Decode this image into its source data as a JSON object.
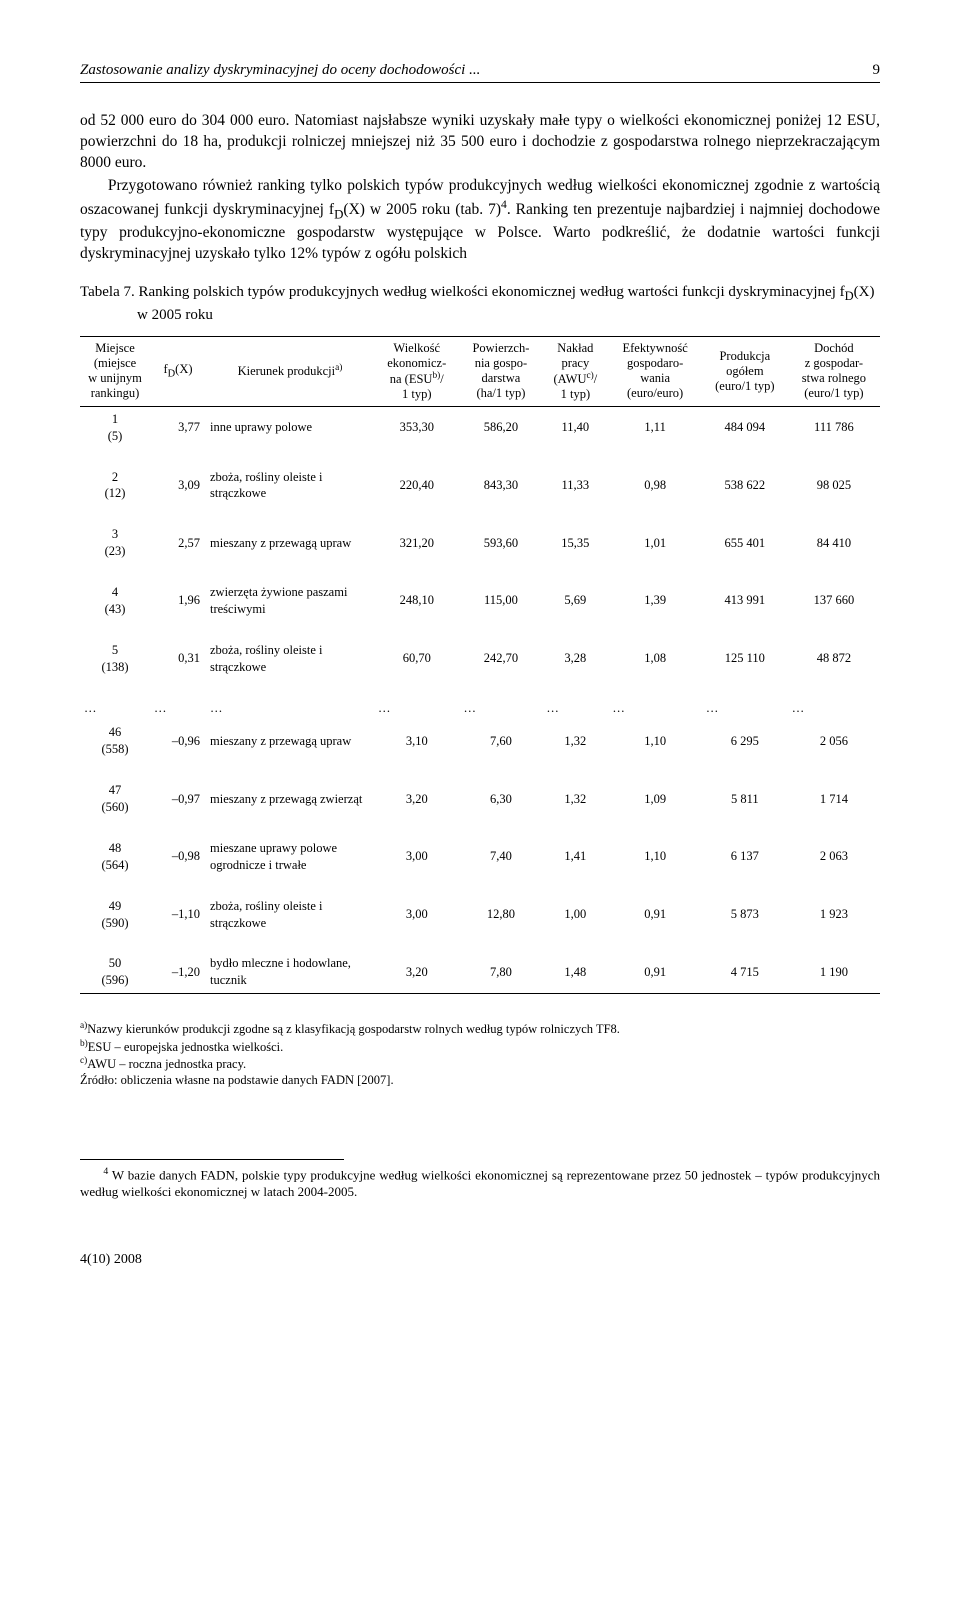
{
  "header": {
    "running_title": "Zastosowanie analizy dyskryminacyjnej do oceny dochodowości ...",
    "page_number": "9"
  },
  "paragraphs": {
    "p1": "od 52 000 euro do 304 000 euro. Natomiast najsłabsze wyniki uzyskały małe typy o wielkości ekonomicznej poniżej 12 ESU, powierzchni do 18 ha, produkcji rolniczej mniejszej niż 35 500 euro i dochodzie z gospodarstwa rolnego nieprzekraczającym 8000 euro.",
    "p2a": "Przygotowano również ranking tylko polskich typów produkcyjnych według wielkości ekonomicznej zgodnie z wartością oszacowanej funkcji dyskryminacyjnej f",
    "p2b": "(X) w 2005 roku (tab. 7)",
    "p2c": ". Ranking ten prezentuje najbardziej i najmniej dochodowe typy produkcyjno-ekonomiczne gospodarstw występujące w Polsce. Warto podkreślić, że dodatnie wartości funkcji dyskryminacyjnej uzyskało tylko 12% typów z ogółu polskich"
  },
  "table_caption": {
    "label": "Tabela 7.",
    "text_a": " Ranking polskich typów produkcyjnych według wielkości ekonomicznej według wartości funkcji dyskryminacyjnej f",
    "text_b": "(X) w 2005 roku"
  },
  "columns": {
    "c1a": "Miejsce",
    "c1b": "(miejsce",
    "c1c": "w unijnym",
    "c1d": "rankingu)",
    "c2": "f",
    "c2b": "(X)",
    "c3": "Kierunek produkcji",
    "c4a": "Wielkość",
    "c4b": "ekonomicz-",
    "c4c": "na (ESU",
    "c4d": "/",
    "c4e": "1 typ)",
    "c5a": "Powierzch-",
    "c5b": "nia gospo-",
    "c5c": "darstwa",
    "c5d": "(ha/1 typ)",
    "c6a": "Nakład",
    "c6b": "pracy",
    "c6c": "(AWU",
    "c6d": "/",
    "c6e": "1 typ)",
    "c7a": "Efektywność",
    "c7b": "gospodaro-",
    "c7c": "wania",
    "c7d": "(euro/euro)",
    "c8a": "Produkcja",
    "c8b": "ogółem",
    "c8c": "(euro/1 typ)",
    "c9a": "Dochód",
    "c9b": "z gospodar-",
    "c9c": "stwa rolnego",
    "c9d": "(euro/1 typ)"
  },
  "rows": [
    {
      "place": "1",
      "uplace": "(5)",
      "fdx": "3,77",
      "kind": "inne uprawy polowe",
      "esu": "353,30",
      "ha": "586,20",
      "awu": "11,40",
      "eff": "1,11",
      "prod": "484 094",
      "inc": "111 786"
    },
    {
      "place": "2",
      "uplace": "(12)",
      "fdx": "3,09",
      "kind": "zboża, rośliny oleiste i strączkowe",
      "esu": "220,40",
      "ha": "843,30",
      "awu": "11,33",
      "eff": "0,98",
      "prod": "538 622",
      "inc": "98 025"
    },
    {
      "place": "3",
      "uplace": "(23)",
      "fdx": "2,57",
      "kind": "mieszany z przewagą upraw",
      "esu": "321,20",
      "ha": "593,60",
      "awu": "15,35",
      "eff": "1,01",
      "prod": "655 401",
      "inc": "84 410"
    },
    {
      "place": "4",
      "uplace": "(43)",
      "fdx": "1,96",
      "kind": "zwierzęta żywione paszami treściwymi",
      "esu": "248,10",
      "ha": "115,00",
      "awu": "5,69",
      "eff": "1,39",
      "prod": "413 991",
      "inc": "137 660"
    },
    {
      "place": "5",
      "uplace": "(138)",
      "fdx": "0,31",
      "kind": "zboża, rośliny oleiste i strączkowe",
      "esu": "60,70",
      "ha": "242,70",
      "awu": "3,28",
      "eff": "1,08",
      "prod": "125 110",
      "inc": "48 872"
    },
    {
      "dots": true
    },
    {
      "place": "46",
      "uplace": "(558)",
      "fdx": "–0,96",
      "kind": "mieszany z przewagą upraw",
      "esu": "3,10",
      "ha": "7,60",
      "awu": "1,32",
      "eff": "1,10",
      "prod": "6 295",
      "inc": "2 056"
    },
    {
      "place": "47",
      "uplace": "(560)",
      "fdx": "–0,97",
      "kind": "mieszany z przewagą zwierząt",
      "esu": "3,20",
      "ha": "6,30",
      "awu": "1,32",
      "eff": "1,09",
      "prod": "5 811",
      "inc": "1 714"
    },
    {
      "place": "48",
      "uplace": "(564)",
      "fdx": "–0,98",
      "kind": "mieszane uprawy polowe ogrodnicze i trwałe",
      "esu": "3,00",
      "ha": "7,40",
      "awu": "1,41",
      "eff": "1,10",
      "prod": "6 137",
      "inc": "2 063"
    },
    {
      "place": "49",
      "uplace": "(590)",
      "fdx": "–1,10",
      "kind": "zboża, rośliny oleiste i strączkowe",
      "esu": "3,00",
      "ha": "12,80",
      "awu": "1,00",
      "eff": "0,91",
      "prod": "5 873",
      "inc": "1 923"
    },
    {
      "place": "50",
      "uplace": "(596)",
      "fdx": "–1,20",
      "kind": "bydło mleczne i hodowlane, tucznik",
      "esu": "3,20",
      "ha": "7,80",
      "awu": "1,48",
      "eff": "0,91",
      "prod": "4 715",
      "inc": "1 190"
    }
  ],
  "footnotes": {
    "a": "Nazwy kierunków produkcji zgodne są z klasyfikacją gospodarstw rolnych według typów rolniczych TF8.",
    "b": "ESU – europejska jednostka wielkości.",
    "c": "AWU – roczna jednostka pracy.",
    "src": "Źródło: obliczenia własne na podstawie danych FADN [2007]."
  },
  "bottom_note": {
    "marker": "4",
    "text": " W bazie danych FADN, polskie typy produkcyjne według wielkości ekonomicznej są reprezentowane przez 50 jednostek – typów produkcyjnych według wielkości ekonomicznej w latach 2004-2005."
  },
  "footer": "4(10) 2008",
  "ellipsis": "…"
}
